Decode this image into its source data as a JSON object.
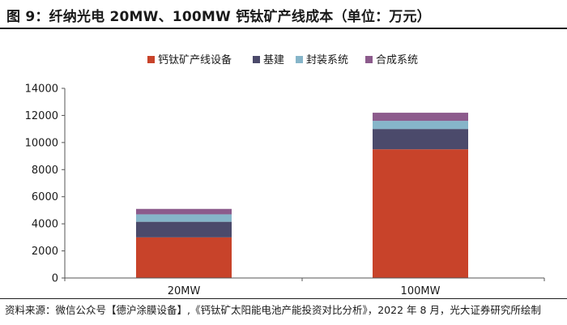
{
  "title": "图 9：纤纳光电 20MW、100MW 钙钛矿产线成本（单位：万元）",
  "source": "资料来源：微信公众号【德沪涂膜设备】,《钙钛矿太阳能电池产能投资对比分析》，2022 年 8 月，光大证券研究所绘制",
  "chart_data": {
    "type": "bar",
    "stacked": true,
    "categories": [
      "20MW",
      "100MW"
    ],
    "series": [
      {
        "name": "钙钛矿产线设备",
        "color": "#c8432a",
        "values": [
          3000,
          9500
        ]
      },
      {
        "name": "基建",
        "color": "#4b4a6b",
        "values": [
          1150,
          1500
        ]
      },
      {
        "name": "封装系统",
        "color": "#86b5c9",
        "values": [
          550,
          600
        ]
      },
      {
        "name": "合成系统",
        "color": "#8c5b8c",
        "values": [
          400,
          600
        ]
      }
    ],
    "ylim": [
      0,
      14000
    ],
    "yticks": [
      0,
      2000,
      4000,
      6000,
      8000,
      10000,
      12000,
      14000
    ],
    "legend": "top",
    "grid": false
  }
}
